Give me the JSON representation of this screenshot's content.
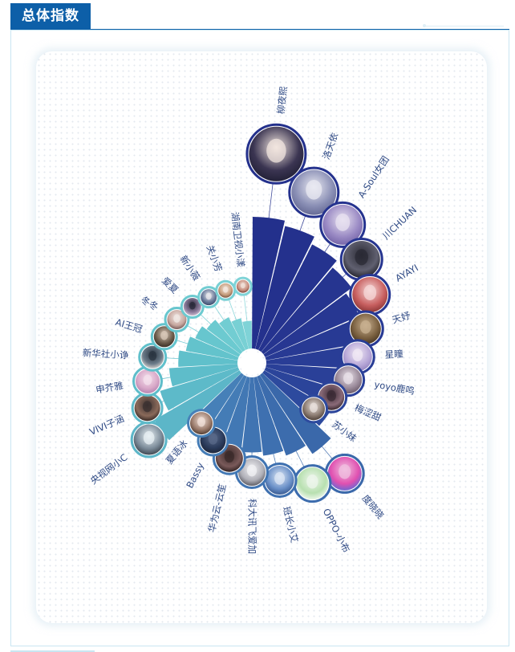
{
  "header": {
    "title": "总体指数"
  },
  "chart_data": {
    "type": "radial_bar",
    "title": "总体指数",
    "scale_max": 100,
    "series": [
      {
        "name": "柳夜熙",
        "value": 100,
        "color": "#23308c",
        "palette": [
          "#f2e6df",
          "#3b3552",
          "#1a1a2e"
        ]
      },
      {
        "name": "洛天依",
        "value": 96,
        "color": "#24318d",
        "palette": [
          "#eaeaf2",
          "#8a8fb5",
          "#5a5e8a"
        ]
      },
      {
        "name": "A-Soul女团",
        "value": 90,
        "color": "#25338f",
        "palette": [
          "#e8e2f0",
          "#9a8ac4",
          "#6a5aa0"
        ]
      },
      {
        "name": "川CHUAN",
        "value": 84,
        "color": "#263590",
        "palette": [
          "#2a2a34",
          "#606070",
          "#111118"
        ]
      },
      {
        "name": "AYAYI",
        "value": 78,
        "color": "#273792",
        "palette": [
          "#f6d8d8",
          "#c86060",
          "#7a2a2a"
        ]
      },
      {
        "name": "天妤",
        "value": 73,
        "color": "#283a94",
        "palette": [
          "#c8b090",
          "#7a6040",
          "#3a2a1a"
        ]
      },
      {
        "name": "星瞳",
        "value": 70,
        "color": "#293d96",
        "palette": [
          "#f0e8f4",
          "#b8a8d8",
          "#8878b8"
        ]
      },
      {
        "name": "yoyo鹿鸣",
        "value": 68,
        "color": "#2a4098",
        "palette": [
          "#e8e0e8",
          "#9a8a9a",
          "#5a4a5a"
        ]
      },
      {
        "name": "梅涩甜",
        "value": 63,
        "color": "#2b449a",
        "palette": [
          "#3a2a34",
          "#8a6a78",
          "#1a1014"
        ]
      },
      {
        "name": "苏小妹",
        "value": 59,
        "color": "#2d4a9e",
        "palette": [
          "#e8e0dc",
          "#8a7a70",
          "#3a2e28"
        ]
      },
      {
        "name": "度晓晓",
        "value": 72,
        "color": "#3a68aa",
        "palette": [
          "#f0c0e0",
          "#e050b0",
          "#4070e0"
        ]
      },
      {
        "name": "OPPO-小布",
        "value": 64,
        "color": "#3c6cad",
        "palette": [
          "#eef6ec",
          "#b8e0b0",
          "#ffffff"
        ]
      },
      {
        "name": "班长小艾",
        "value": 60,
        "color": "#3e70b0",
        "palette": [
          "#dce6f4",
          "#6a90c8",
          "#2a4a80"
        ]
      },
      {
        "name": "科大讯飞爱加",
        "value": 57,
        "color": "#4074b2",
        "palette": [
          "#f2f2f4",
          "#b0b0b8",
          "#404048"
        ]
      },
      {
        "name": "华为云-云笙",
        "value": 53,
        "color": "#4278b4",
        "palette": [
          "#3a2a2a",
          "#7a5a5a",
          "#1a1010"
        ]
      },
      {
        "name": "Bassy",
        "value": 47,
        "color": "#447cb6",
        "palette": [
          "#5a6a8a",
          "#2a3a5a",
          "#1a2030"
        ]
      },
      {
        "name": "夏语冰",
        "value": 41,
        "color": "#4680b8",
        "palette": [
          "#f0e0d8",
          "#9a7a6a",
          "#3a2a22"
        ]
      },
      {
        "name": "央视网小C",
        "value": 75,
        "color": "#5cb6c8",
        "palette": [
          "#e8f0f4",
          "#7a8a98",
          "#2a3038"
        ]
      },
      {
        "name": "VIVI子涵",
        "value": 62,
        "color": "#5dbac9",
        "palette": [
          "#3a3030",
          "#8a6a5a",
          "#1a1414"
        ]
      },
      {
        "name": "申芥雅",
        "value": 52,
        "color": "#5ebdca",
        "palette": [
          "#f4e0ec",
          "#d8a8c8",
          "#a878a8"
        ]
      },
      {
        "name": "新华社小诤",
        "value": 45,
        "color": "#60c0cb",
        "palette": [
          "#2a3440",
          "#6a7a88",
          "#f0e8e0"
        ]
      },
      {
        "name": "AI王冠",
        "value": 40,
        "color": "#63c3cc",
        "palette": [
          "#d8c8b8",
          "#6a5a4a",
          "#2a2018"
        ]
      },
      {
        "name": "冬冬",
        "value": 36,
        "color": "#67c6ce",
        "palette": [
          "#f0e8e4",
          "#c8a8a0",
          "#5a4040"
        ]
      },
      {
        "name": "爱夏",
        "value": 32,
        "color": "#6ccad0",
        "palette": [
          "#2a2a3a",
          "#8a7a9a",
          "#e0d0e0"
        ]
      },
      {
        "name": "新小薇",
        "value": 28,
        "color": "#72cdd2",
        "palette": [
          "#e8e8ec",
          "#6a7a9a",
          "#2a3a5a"
        ]
      },
      {
        "name": "关小芳",
        "value": 24,
        "color": "#78d0d4",
        "palette": [
          "#f4e8e0",
          "#c8a080",
          "#5a3a2a"
        ]
      },
      {
        "name": "湖南卫视小漾",
        "value": 21,
        "color": "#7fd3d7",
        "palette": [
          "#f0e0d8",
          "#c89080",
          "#5a2a20"
        ]
      }
    ]
  }
}
